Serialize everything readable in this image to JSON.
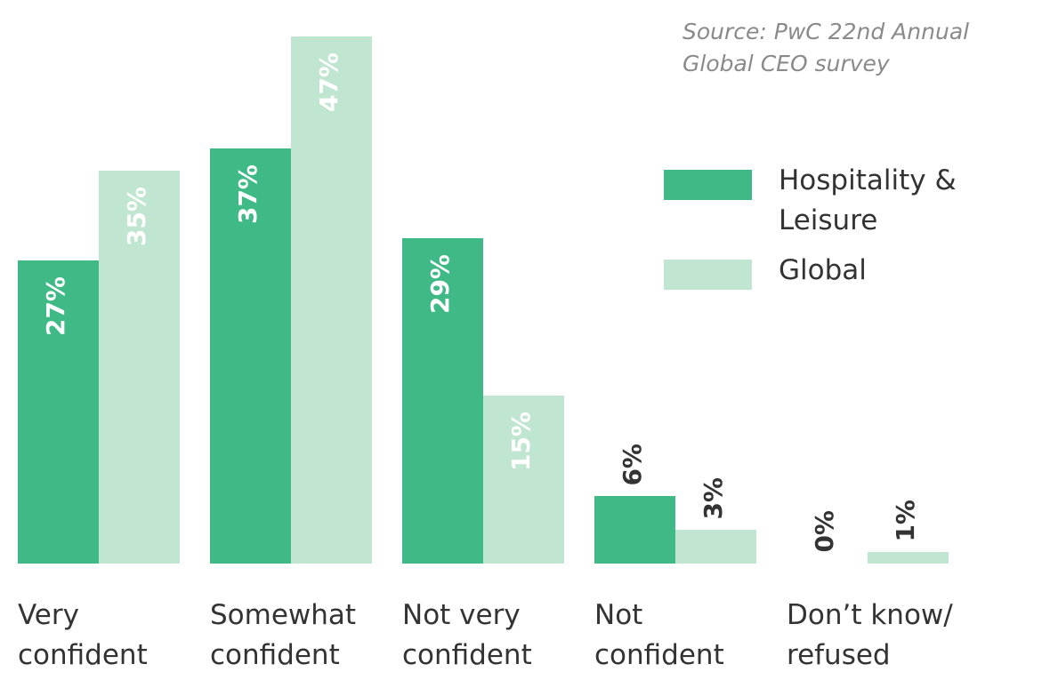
{
  "chart_data": {
    "type": "bar",
    "source": "Source: PwC 22nd Annual Global CEO survey",
    "categories": [
      "Very confident",
      "Somewhat confident",
      "Not very confident",
      "Not confident",
      "Don’t know/ refused"
    ],
    "series": [
      {
        "name": "Hospitality & Leisure",
        "color": "#3fba87",
        "values": [
          27,
          37,
          29,
          6,
          0
        ],
        "value_labels": [
          "27%",
          "37%",
          "29%",
          "6%",
          "0%"
        ]
      },
      {
        "name": "Global",
        "color": "#c0e5d1",
        "values": [
          35,
          47,
          15,
          3,
          1
        ],
        "value_labels": [
          "35%",
          "47%",
          "15%",
          "3%",
          "1%"
        ]
      }
    ],
    "legend": "top-right"
  }
}
